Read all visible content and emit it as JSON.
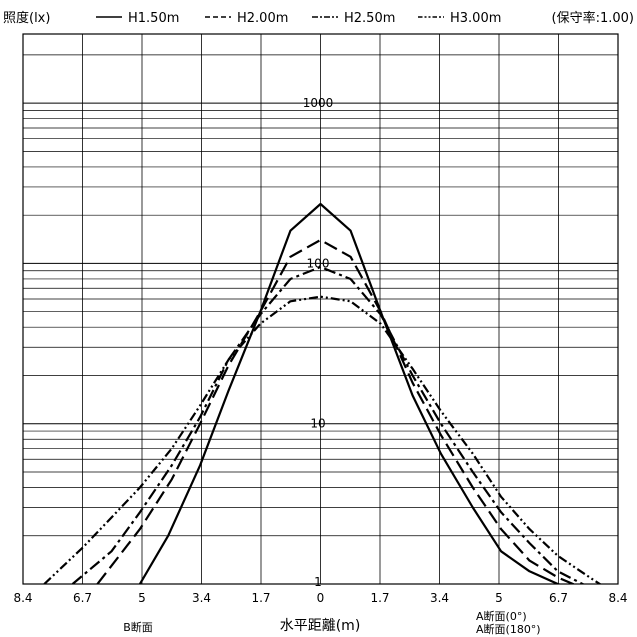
{
  "chart_data": {
    "type": "line",
    "yscale": "log",
    "ylabel": "照度(lx)",
    "xlabel": "水平距離(m)",
    "maintenance_factor_label": "(保守率:1.00)",
    "left_section_label": "B断面",
    "right_section_labels": [
      "A断面(0°)",
      "A断面(180°)"
    ],
    "x_tick_labels": [
      "8.4",
      "6.7",
      "5",
      "3.4",
      "1.7",
      "0",
      "1.7",
      "3.4",
      "5",
      "6.7",
      "8.4"
    ],
    "y_tick_labels": [
      "1",
      "10",
      "100",
      "1000"
    ],
    "xlim": [
      -8.4,
      8.4
    ],
    "ylim": [
      1,
      2700
    ],
    "grid": true,
    "legend_position": "top",
    "series": [
      {
        "name": "H1.50m",
        "dash": "solid",
        "x": [
          -5.1,
          -4.3,
          -3.4,
          -2.6,
          -1.7,
          -0.85,
          0,
          0.85,
          1.7,
          2.6,
          3.4,
          4.3,
          5.1,
          5.9,
          6.7,
          7.4
        ],
        "y": [
          1.0,
          2.0,
          5.5,
          16,
          50,
          160,
          235,
          160,
          50,
          15,
          6.5,
          3.0,
          1.6,
          1.2,
          1.0,
          0.9
        ]
      },
      {
        "name": "H2.00m",
        "dash": "long-dash",
        "x": [
          -6.3,
          -5.1,
          -4.2,
          -3.4,
          -2.6,
          -1.7,
          -0.85,
          0,
          0.85,
          1.7,
          2.6,
          3.4,
          4.3,
          5.1,
          5.9,
          6.7,
          7.6
        ],
        "y": [
          1.0,
          2.2,
          4.5,
          10,
          23,
          50,
          110,
          140,
          110,
          50,
          18,
          8.5,
          4.0,
          2.2,
          1.4,
          1.1,
          0.9
        ]
      },
      {
        "name": "H2.50m",
        "dash": "dash-dot",
        "x": [
          -7.0,
          -5.9,
          -5.1,
          -4.2,
          -3.4,
          -2.6,
          -1.7,
          -0.85,
          0,
          0.85,
          1.7,
          2.6,
          3.4,
          4.3,
          5.1,
          5.9,
          6.7,
          7.8
        ],
        "y": [
          1.0,
          1.6,
          2.8,
          5.5,
          11,
          25,
          48,
          80,
          95,
          80,
          48,
          20,
          10,
          5.0,
          2.8,
          1.8,
          1.2,
          0.9
        ]
      },
      {
        "name": "H3.00m",
        "dash": "dash-dot-dot",
        "x": [
          -7.8,
          -6.7,
          -5.9,
          -5.1,
          -4.2,
          -3.4,
          -2.6,
          -1.7,
          -0.85,
          0,
          0.85,
          1.7,
          2.6,
          3.4,
          4.3,
          5.1,
          5.9,
          6.7,
          7.6,
          8.2
        ],
        "y": [
          1.0,
          1.7,
          2.6,
          4.0,
          7.0,
          13,
          25,
          42,
          58,
          62,
          58,
          42,
          22,
          12,
          6.5,
          3.5,
          2.2,
          1.5,
          1.1,
          0.9
        ]
      }
    ]
  }
}
